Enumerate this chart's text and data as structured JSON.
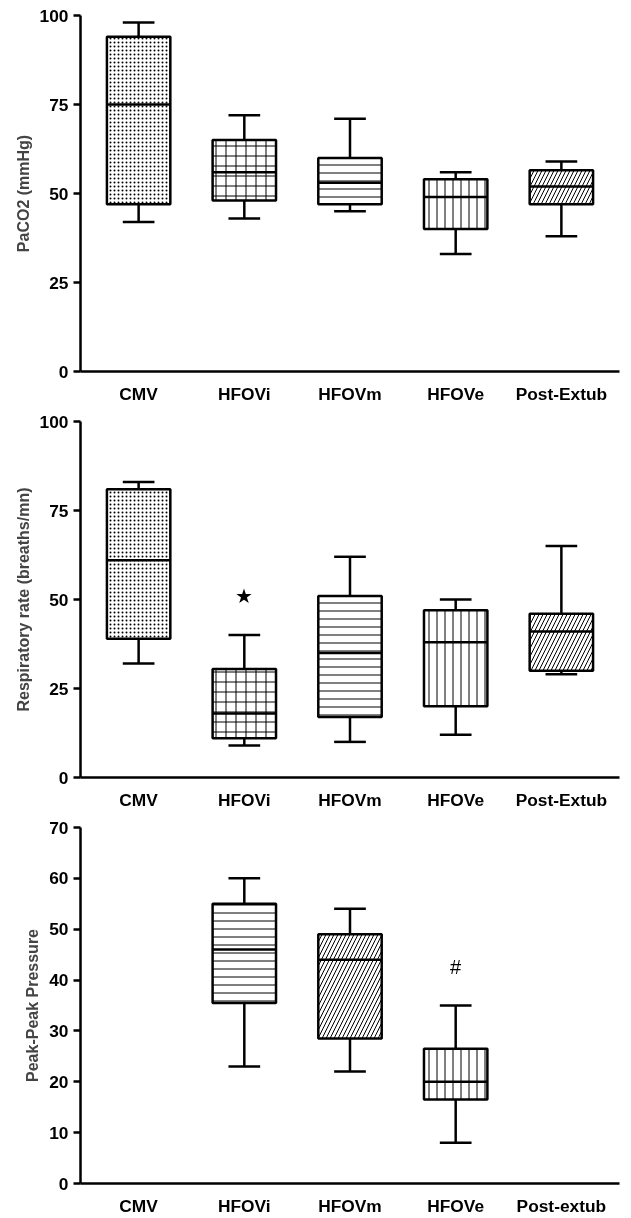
{
  "chart_data": [
    {
      "type": "box",
      "ylabel": "PaCO2 (mmHg)",
      "categories": [
        "CMV",
        "HFOVi",
        "HFOVm",
        "HFOVe",
        "Post-Extub"
      ],
      "ylim": [
        0,
        100
      ],
      "yticks": [
        0,
        25,
        50,
        75,
        100
      ],
      "grid": false,
      "boxes": [
        {
          "low": 42,
          "q1": 47,
          "median": 75,
          "q3": 94,
          "high": 98
        },
        {
          "low": 43,
          "q1": 48,
          "median": 56,
          "q3": 65,
          "high": 72
        },
        {
          "low": 45,
          "q1": 47,
          "median": 53,
          "q3": 60,
          "high": 71
        },
        {
          "low": 33,
          "q1": 40,
          "median": 49,
          "q3": 54,
          "high": 56
        },
        {
          "low": 38,
          "q1": 47,
          "median": 52,
          "q3": 56.5,
          "high": 59
        }
      ]
    },
    {
      "type": "box",
      "ylabel": "Respiratory rate (breaths/mn)",
      "categories": [
        "CMV",
        "HFOVi",
        "HFOVm",
        "HFOVe",
        "Post-Extub"
      ],
      "ylim": [
        0,
        100
      ],
      "yticks": [
        0,
        25,
        50,
        75,
        100
      ],
      "grid": false,
      "boxes": [
        {
          "low": 32,
          "q1": 39,
          "median": 61,
          "q3": 81,
          "high": 83
        },
        {
          "low": 9,
          "q1": 11,
          "median": 18,
          "q3": 30.5,
          "high": 40
        },
        {
          "low": 10,
          "q1": 17,
          "median": 35,
          "q3": 51,
          "high": 62
        },
        {
          "low": 12,
          "q1": 20,
          "median": 38,
          "q3": 47,
          "high": 50
        },
        {
          "low": 29,
          "q1": 30,
          "median": 41,
          "q3": 46,
          "high": 65
        }
      ],
      "annotations": [
        "★"
      ]
    },
    {
      "type": "box",
      "ylabel": "Peak-Peak Pressure",
      "categories": [
        "CMV",
        "HFOVi",
        "HFOVm",
        "HFOVe",
        "Post-extub"
      ],
      "ylim": [
        0,
        70
      ],
      "yticks": [
        0,
        10,
        20,
        30,
        40,
        50,
        60,
        70
      ],
      "grid": false,
      "boxes": [
        null,
        {
          "low": 23,
          "q1": 35.5,
          "median": 46,
          "q3": 55,
          "high": 60
        },
        {
          "low": 22,
          "q1": 28.5,
          "median": 44,
          "q3": 49,
          "high": 54
        },
        {
          "low": 8,
          "q1": 16.5,
          "median": 20,
          "q3": 26.5,
          "high": 35
        },
        null
      ],
      "annotations": [
        "#"
      ]
    }
  ]
}
